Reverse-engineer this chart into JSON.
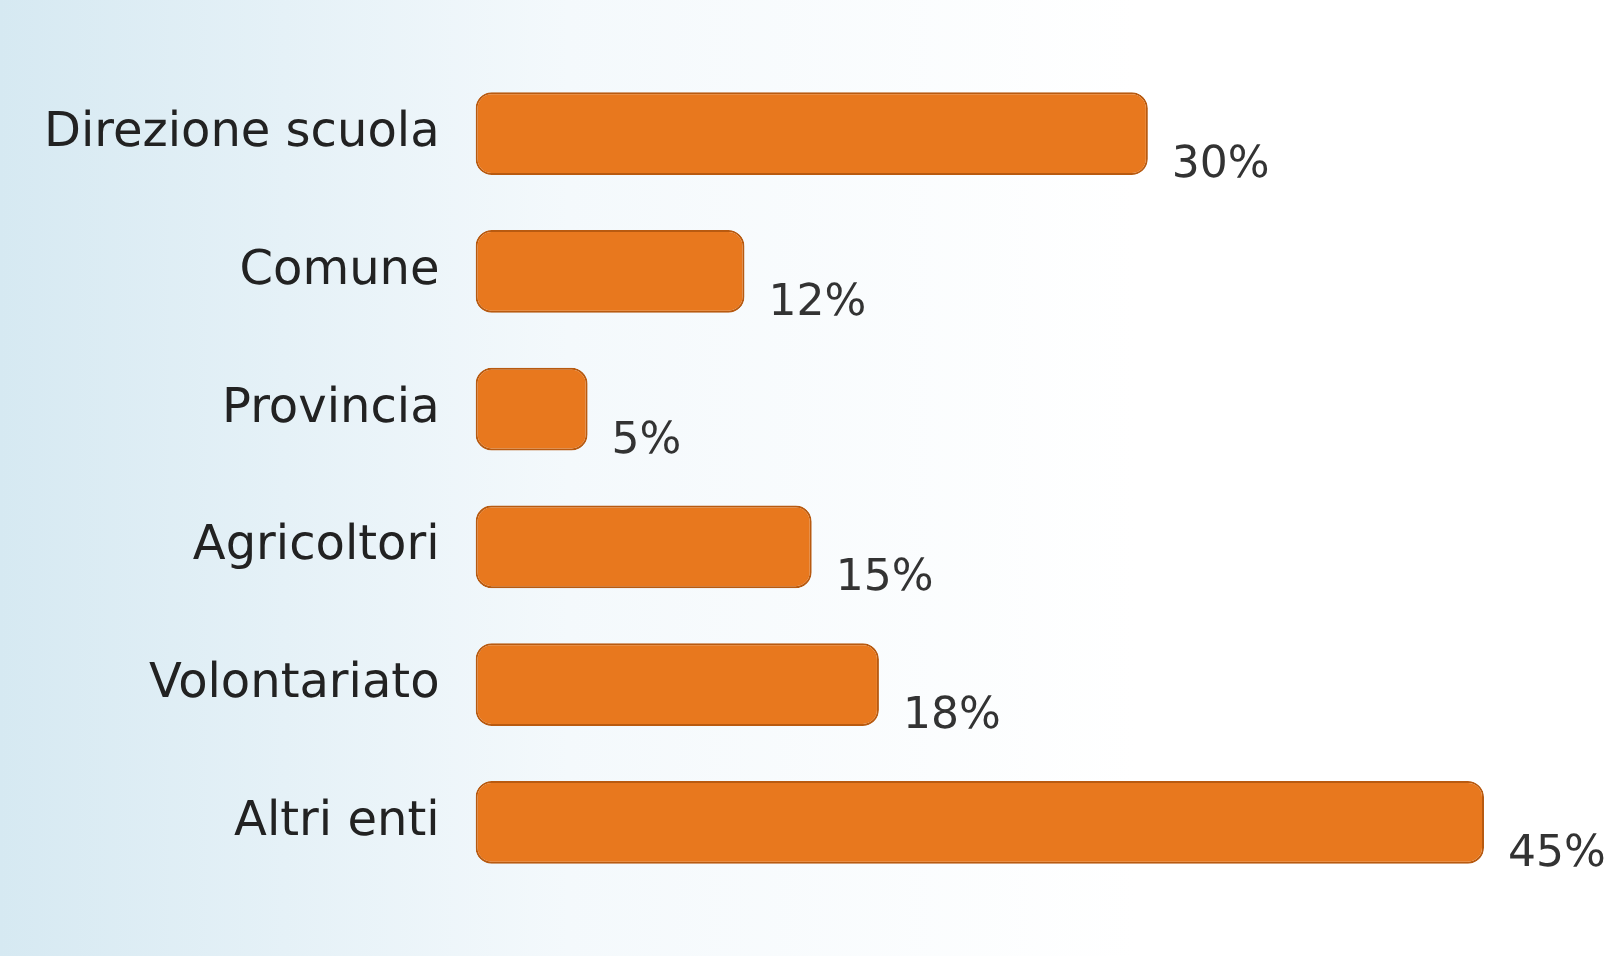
{
  "chart_data": {
    "type": "bar",
    "orientation": "horizontal",
    "categories": [
      "Direzione scuola",
      "Comune",
      "Provincia",
      "Agricoltori",
      "Volontariato",
      "Altri enti"
    ],
    "values": [
      30,
      12,
      5,
      15,
      18,
      45
    ],
    "color": "#e8781e",
    "value_labels": [
      "30%",
      "12%",
      "5%",
      "15%",
      "18%",
      "45%"
    ],
    "grid": false,
    "legend": false,
    "tick_labels": "y"
  }
}
